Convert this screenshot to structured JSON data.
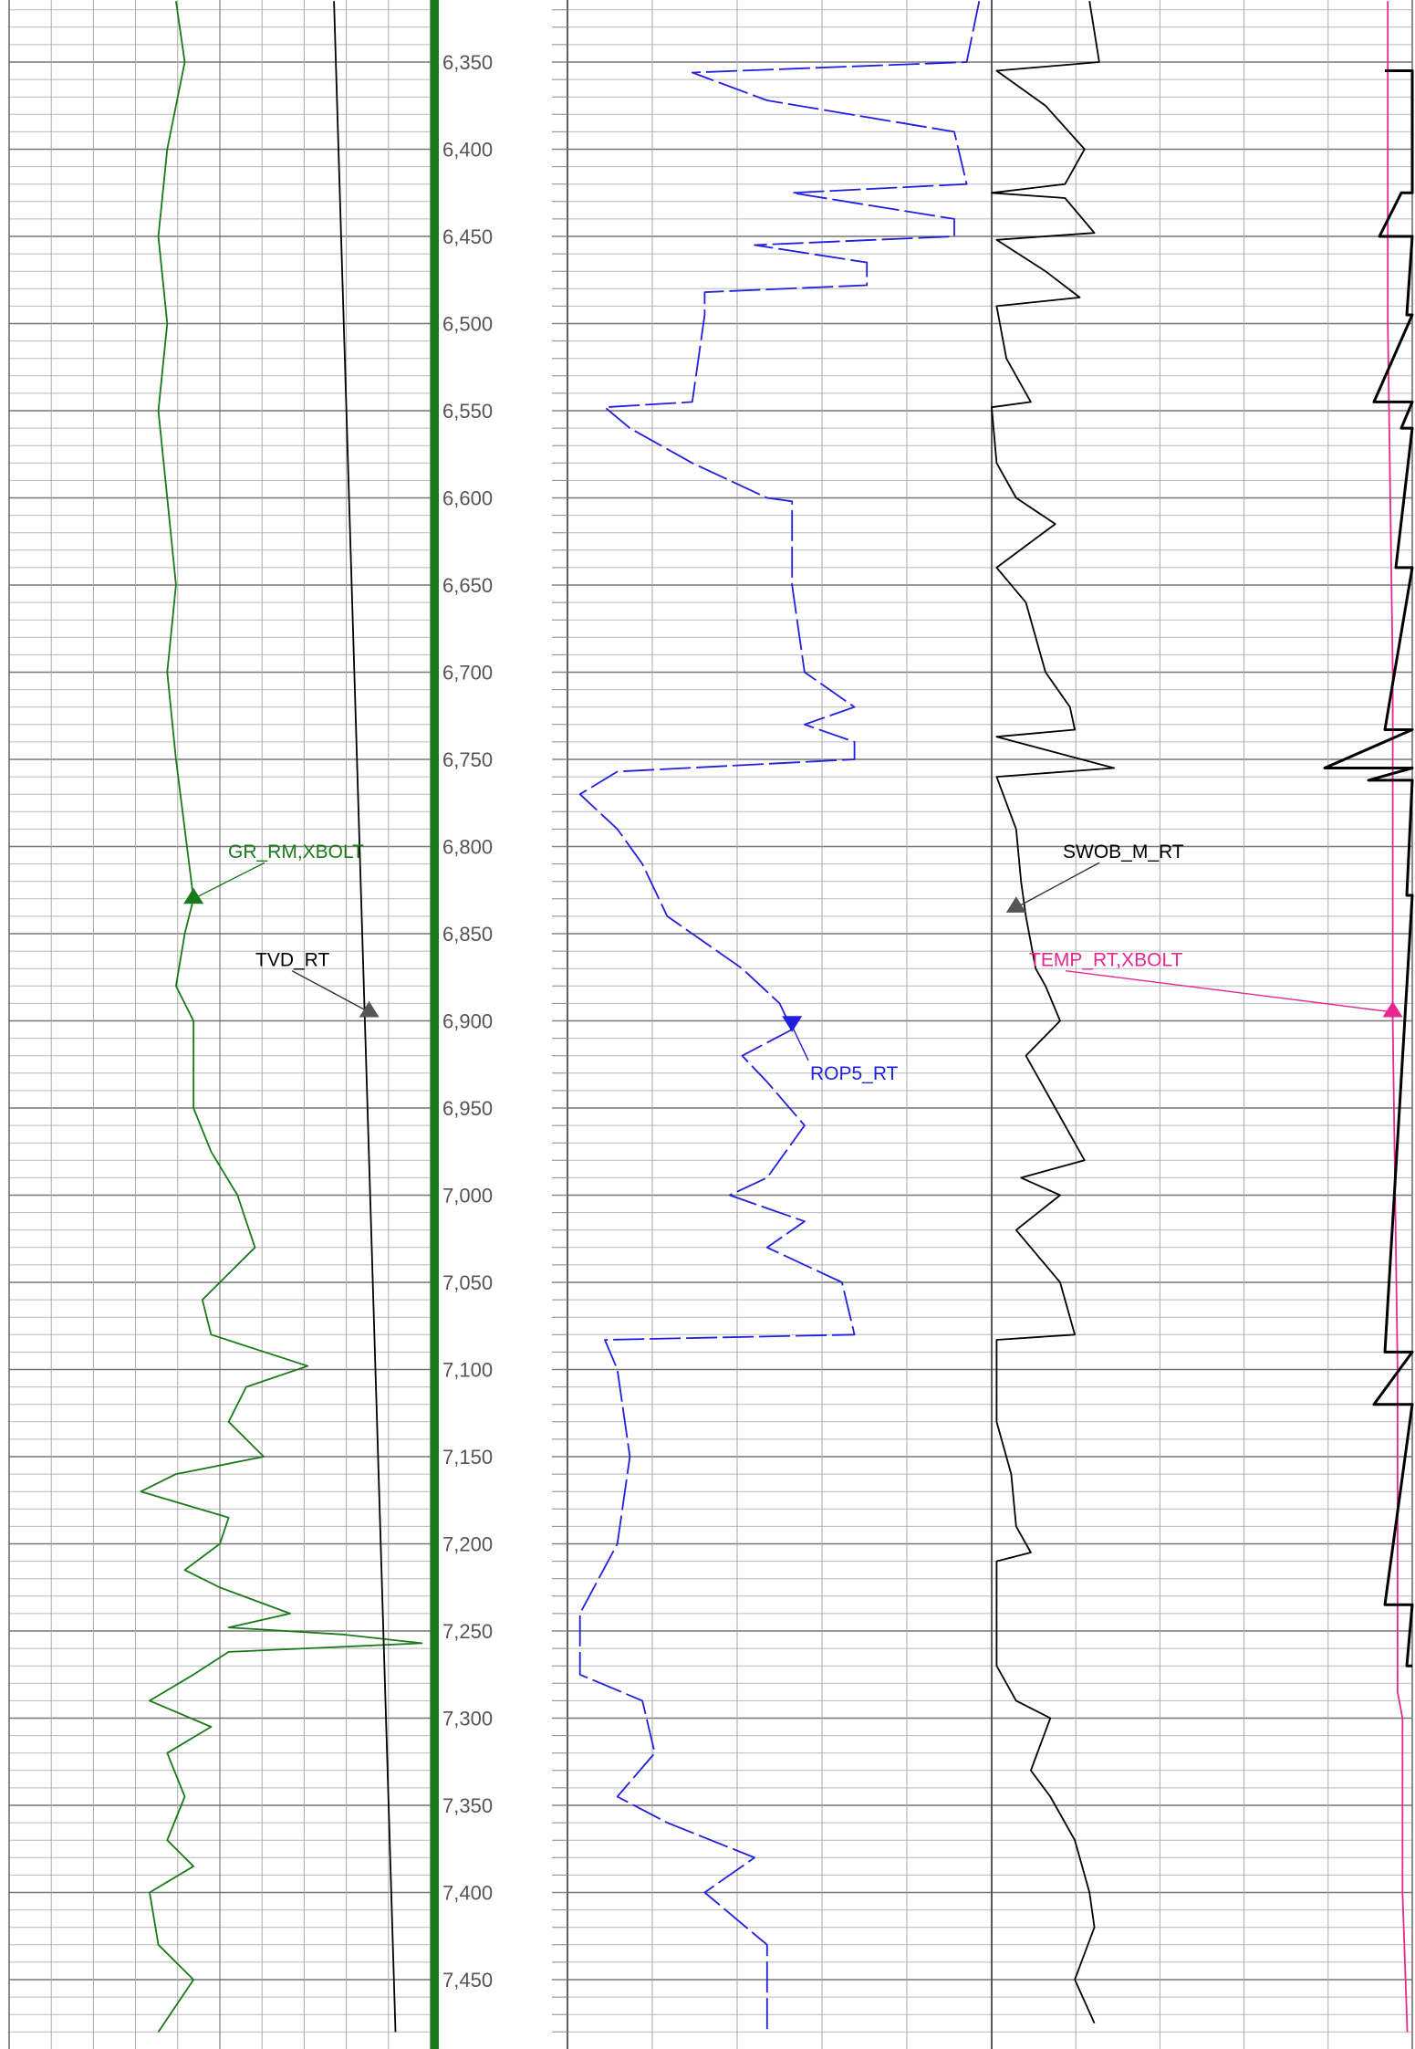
{
  "chart_data": {
    "type": "line",
    "title": "",
    "ylabel": "",
    "y_axis": "depth",
    "depth_range": [
      6315,
      7480
    ],
    "depth_ticks": [
      6350,
      6400,
      6450,
      6500,
      6550,
      6600,
      6650,
      6700,
      6750,
      6800,
      6850,
      6900,
      6950,
      7000,
      7050,
      7100,
      7150,
      7200,
      7250,
      7300,
      7350,
      7400,
      7450
    ],
    "depth_tick_labels": [
      "6,350",
      "6,400",
      "6,450",
      "6,500",
      "6,550",
      "6,600",
      "6,650",
      "6,700",
      "6,750",
      "6,800",
      "6,850",
      "6,900",
      "6,950",
      "7,000",
      "7,050",
      "7,100",
      "7,150",
      "7,200",
      "7,250",
      "7,300",
      "7,350",
      "7,400",
      "7,450"
    ],
    "grid": true,
    "tracks": [
      {
        "id": "track1",
        "series": [
          {
            "name": "GR_RM,XBOLT",
            "color": "#1a7a1a",
            "style": "solid",
            "label_depth": 6803,
            "marker": "triangle-up",
            "marker_point": [
              6830,
              0.21
            ],
            "points": [
              [
                6315,
                0.19
              ],
              [
                6350,
                0.2
              ],
              [
                6400,
                0.18
              ],
              [
                6450,
                0.17
              ],
              [
                6500,
                0.18
              ],
              [
                6550,
                0.17
              ],
              [
                6600,
                0.18
              ],
              [
                6650,
                0.19
              ],
              [
                6700,
                0.18
              ],
              [
                6750,
                0.19
              ],
              [
                6790,
                0.2
              ],
              [
                6830,
                0.21
              ],
              [
                6850,
                0.2
              ],
              [
                6880,
                0.19
              ],
              [
                6900,
                0.21
              ],
              [
                6950,
                0.21
              ],
              [
                6975,
                0.23
              ],
              [
                7000,
                0.26
              ],
              [
                7030,
                0.28
              ],
              [
                7060,
                0.22
              ],
              [
                7080,
                0.23
              ],
              [
                7098,
                0.34
              ],
              [
                7110,
                0.27
              ],
              [
                7130,
                0.25
              ],
              [
                7150,
                0.29
              ],
              [
                7160,
                0.19
              ],
              [
                7170,
                0.15
              ],
              [
                7185,
                0.25
              ],
              [
                7200,
                0.24
              ],
              [
                7215,
                0.2
              ],
              [
                7225,
                0.24
              ],
              [
                7240,
                0.32
              ],
              [
                7248,
                0.25
              ],
              [
                7252,
                0.38
              ],
              [
                7257,
                0.47
              ],
              [
                7262,
                0.25
              ],
              [
                7275,
                0.21
              ],
              [
                7290,
                0.16
              ],
              [
                7305,
                0.23
              ],
              [
                7320,
                0.18
              ],
              [
                7345,
                0.2
              ],
              [
                7370,
                0.18
              ],
              [
                7385,
                0.21
              ],
              [
                7400,
                0.16
              ],
              [
                7430,
                0.17
              ],
              [
                7450,
                0.21
              ],
              [
                7480,
                0.17
              ]
            ]
          },
          {
            "name": "TVD_RT",
            "color": "#000000",
            "style": "solid",
            "label_depth": 6865,
            "marker": "triangle-up",
            "marker_point": [
              6895,
              0.41
            ],
            "points": [
              [
                6315,
                0.37
              ],
              [
                7480,
                0.44
              ]
            ]
          }
        ]
      },
      {
        "id": "track2",
        "series": [
          {
            "name": "ROP5_RT",
            "color": "#1f1fe0",
            "style": "dashed",
            "label_depth": 6930,
            "marker": "triangle-down",
            "marker_point": [
              6903,
              0.84
            ],
            "points": [
              [
                6315,
                0.99
              ],
              [
                6350,
                0.98
              ],
              [
                6356,
                0.76
              ],
              [
                6372,
                0.82
              ],
              [
                6390,
                0.97
              ],
              [
                6420,
                0.98
              ],
              [
                6425,
                0.84
              ],
              [
                6440,
                0.97
              ],
              [
                6450,
                0.97
              ],
              [
                6455,
                0.81
              ],
              [
                6465,
                0.9
              ],
              [
                6478,
                0.9
              ],
              [
                6482,
                0.77
              ],
              [
                6490,
                0.77
              ],
              [
                6495,
                0.77
              ],
              [
                6545,
                0.76
              ],
              [
                6548,
                0.69
              ],
              [
                6560,
                0.71
              ],
              [
                6580,
                0.76
              ],
              [
                6600,
                0.82
              ],
              [
                6602,
                0.84
              ],
              [
                6650,
                0.84
              ],
              [
                6700,
                0.85
              ],
              [
                6720,
                0.89
              ],
              [
                6730,
                0.85
              ],
              [
                6740,
                0.89
              ],
              [
                6750,
                0.89
              ],
              [
                6757,
                0.7
              ],
              [
                6770,
                0.67
              ],
              [
                6790,
                0.7
              ],
              [
                6810,
                0.72
              ],
              [
                6840,
                0.74
              ],
              [
                6870,
                0.8
              ],
              [
                6890,
                0.83
              ],
              [
                6905,
                0.84
              ],
              [
                6920,
                0.8
              ],
              [
                6935,
                0.82
              ],
              [
                6960,
                0.85
              ],
              [
                6990,
                0.82
              ],
              [
                7000,
                0.79
              ],
              [
                7015,
                0.85
              ],
              [
                7030,
                0.82
              ],
              [
                7050,
                0.88
              ],
              [
                7080,
                0.89
              ],
              [
                7083,
                0.69
              ],
              [
                7100,
                0.7
              ],
              [
                7150,
                0.71
              ],
              [
                7200,
                0.7
              ],
              [
                7240,
                0.67
              ],
              [
                7275,
                0.67
              ],
              [
                7290,
                0.72
              ],
              [
                7320,
                0.73
              ],
              [
                7345,
                0.7
              ],
              [
                7360,
                0.74
              ],
              [
                7380,
                0.81
              ],
              [
                7400,
                0.77
              ],
              [
                7430,
                0.82
              ],
              [
                7480,
                0.82
              ]
            ]
          }
        ]
      },
      {
        "id": "track3",
        "series": [
          {
            "name": "SWOB_M_RT",
            "color": "#000000",
            "style": "solid",
            "label_depth": 6803,
            "marker": "triangle-up",
            "marker_point": [
              6835,
              1.12
            ],
            "points": [
              [
                6315,
                1.27
              ],
              [
                6350,
                1.29
              ],
              [
                6355,
                1.08
              ],
              [
                6375,
                1.18
              ],
              [
                6400,
                1.26
              ],
              [
                6420,
                1.22
              ],
              [
                6425,
                1.07
              ],
              [
                6428,
                1.22
              ],
              [
                6448,
                1.28
              ],
              [
                6452,
                1.08
              ],
              [
                6470,
                1.18
              ],
              [
                6485,
                1.25
              ],
              [
                6490,
                1.08
              ],
              [
                6520,
                1.1
              ],
              [
                6545,
                1.15
              ],
              [
                6548,
                1.07
              ],
              [
                6580,
                1.08
              ],
              [
                6600,
                1.12
              ],
              [
                6615,
                1.2
              ],
              [
                6640,
                1.08
              ],
              [
                6660,
                1.14
              ],
              [
                6700,
                1.18
              ],
              [
                6720,
                1.23
              ],
              [
                6733,
                1.24
              ],
              [
                6737,
                1.08
              ],
              [
                6755,
                1.32
              ],
              [
                6760,
                1.08
              ],
              [
                6790,
                1.12
              ],
              [
                6820,
                1.13
              ],
              [
                6840,
                1.14
              ],
              [
                6870,
                1.16
              ],
              [
                6880,
                1.18
              ],
              [
                6900,
                1.21
              ],
              [
                6920,
                1.14
              ],
              [
                6950,
                1.2
              ],
              [
                6980,
                1.26
              ],
              [
                6990,
                1.13
              ],
              [
                7000,
                1.21
              ],
              [
                7020,
                1.12
              ],
              [
                7050,
                1.21
              ],
              [
                7080,
                1.24
              ],
              [
                7083,
                1.08
              ],
              [
                7130,
                1.08
              ],
              [
                7160,
                1.11
              ],
              [
                7190,
                1.12
              ],
              [
                7205,
                1.15
              ],
              [
                7210,
                1.08
              ],
              [
                7270,
                1.08
              ],
              [
                7290,
                1.12
              ],
              [
                7300,
                1.19
              ],
              [
                7330,
                1.15
              ],
              [
                7345,
                1.19
              ],
              [
                7370,
                1.24
              ],
              [
                7400,
                1.27
              ],
              [
                7420,
                1.28
              ],
              [
                7450,
                1.24
              ],
              [
                7475,
                1.28
              ]
            ]
          },
          {
            "name": "TEMP_RT,XBOLT",
            "color": "#e8268f",
            "style": "solid",
            "label_depth": 6865,
            "marker": "triangle-up",
            "marker_point": [
              6895,
              1.89
            ],
            "points": [
              [
                6315,
                1.88
              ],
              [
                6500,
                1.88
              ],
              [
                6700,
                1.89
              ],
              [
                6900,
                1.89
              ],
              [
                7100,
                1.9
              ],
              [
                7285,
                1.9
              ],
              [
                7300,
                1.91
              ],
              [
                7400,
                1.91
              ],
              [
                7480,
                1.92
              ]
            ]
          }
        ]
      },
      {
        "id": "track4",
        "series": [
          {
            "name": "",
            "color": "#000000",
            "style": "solid",
            "points": [
              [
                6355,
                2.95
              ],
              [
                6355,
                3.0
              ],
              [
                6425,
                3.0
              ],
              [
                6425,
                2.98
              ],
              [
                6450,
                2.94
              ],
              [
                6450,
                3.0
              ],
              [
                6495,
                2.99
              ],
              [
                6495,
                3.0
              ],
              [
                6545,
                2.93
              ],
              [
                6545,
                3.0
              ],
              [
                6560,
                2.98
              ],
              [
                6560,
                3.0
              ],
              [
                6640,
                2.97
              ],
              [
                6640,
                3.0
              ],
              [
                6733,
                2.95
              ],
              [
                6733,
                3.0
              ],
              [
                6755,
                2.84
              ],
              [
                6755,
                3.0
              ],
              [
                6762,
                2.92
              ],
              [
                6762,
                3.0
              ],
              [
                6828,
                2.99
              ],
              [
                6828,
                3.0
              ],
              [
                7090,
                2.95
              ],
              [
                7090,
                3.0
              ],
              [
                7120,
                2.93
              ],
              [
                7120,
                3.0
              ],
              [
                7235,
                2.95
              ],
              [
                7235,
                3.0
              ],
              [
                7270,
                2.99
              ],
              [
                7270,
                3.0
              ]
            ]
          }
        ]
      }
    ]
  }
}
